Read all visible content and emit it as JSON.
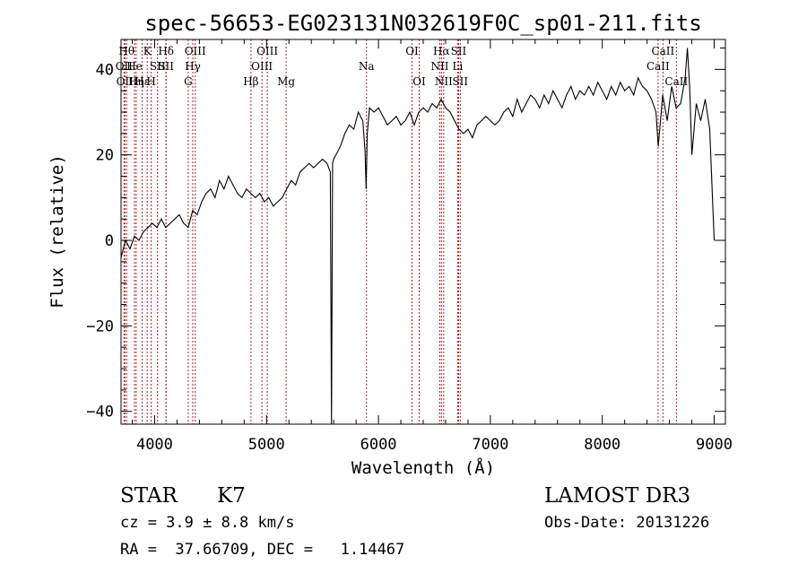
{
  "chart_data": {
    "type": "line",
    "title": "spec-56653-EG023131N032619F0C_sp01-211.fits",
    "xlabel": "Wavelength (Å)",
    "ylabel": "Flux (relative)",
    "xlim": [
      3700,
      9100
    ],
    "ylim": [
      -43,
      47
    ],
    "xticks": [
      4000,
      5000,
      6000,
      7000,
      8000,
      9000
    ],
    "yticks": [
      -40,
      -20,
      0,
      20,
      40
    ],
    "ytick_labels": [
      "−40",
      "−20",
      "0",
      "20",
      "40"
    ],
    "line_color": "#000000",
    "marker_color": "#b22222",
    "series": [
      {
        "x": [
          3700,
          3740,
          3780,
          3820,
          3860,
          3900,
          3940,
          3980,
          4020,
          4060,
          4100,
          4140,
          4180,
          4220,
          4260,
          4300,
          4340,
          4380,
          4420,
          4460,
          4500,
          4540,
          4580,
          4620,
          4660,
          4700,
          4740,
          4780,
          4820,
          4860,
          4900,
          4940,
          4980,
          5020,
          5060,
          5100,
          5140,
          5180,
          5220,
          5260,
          5300,
          5340,
          5380,
          5420,
          5460,
          5500,
          5540,
          5570,
          5580,
          5590,
          5600,
          5620,
          5660,
          5700,
          5740,
          5780,
          5820,
          5860,
          5880,
          5890,
          5900,
          5920,
          5960,
          6000,
          6040,
          6080,
          6120,
          6160,
          6200,
          6240,
          6280,
          6320,
          6360,
          6400,
          6440,
          6480,
          6520,
          6560,
          6600,
          6640,
          6680,
          6720,
          6760,
          6800,
          6840,
          6880,
          6920,
          6960,
          7000,
          7040,
          7080,
          7120,
          7160,
          7200,
          7240,
          7280,
          7320,
          7360,
          7400,
          7440,
          7480,
          7520,
          7560,
          7600,
          7640,
          7680,
          7720,
          7760,
          7800,
          7840,
          7880,
          7920,
          7960,
          8000,
          8040,
          8080,
          8120,
          8160,
          8200,
          8240,
          8280,
          8320,
          8360,
          8400,
          8440,
          8480,
          8500,
          8540,
          8580,
          8620,
          8660,
          8700,
          8740,
          8760,
          8780,
          8800,
          8840,
          8880,
          8920,
          8960,
          9000
        ],
        "y": [
          -4,
          0,
          -2,
          1,
          0,
          2,
          3,
          4,
          3,
          5,
          3,
          4,
          5,
          6,
          4,
          3,
          7,
          6,
          9,
          11,
          12,
          10,
          14,
          12,
          15,
          13,
          11,
          10,
          12,
          11,
          10,
          11,
          9,
          10,
          8,
          9,
          10,
          12,
          14,
          13,
          16,
          17,
          18,
          17,
          18,
          19,
          18,
          16,
          -43,
          18,
          19,
          20,
          22,
          25,
          27,
          26,
          30,
          28,
          21,
          12,
          25,
          31,
          30,
          31,
          29,
          27,
          28,
          29,
          27,
          28,
          30,
          27,
          30,
          31,
          30,
          32,
          31,
          33,
          31,
          30,
          28,
          26,
          25,
          26,
          24,
          27,
          28,
          29,
          28,
          27,
          28,
          30,
          31,
          29,
          33,
          30,
          32,
          34,
          33,
          31,
          34,
          32,
          35,
          33,
          31,
          34,
          36,
          33,
          35,
          34,
          36,
          34,
          37,
          35,
          33,
          36,
          34,
          37,
          35,
          36,
          34,
          38,
          36,
          35,
          33,
          30,
          22,
          34,
          28,
          36,
          31,
          32,
          38,
          45,
          36,
          20,
          32,
          28,
          33,
          26,
          0
        ]
      }
    ],
    "line_markers": [
      {
        "wl": 3750,
        "label": "Hθ",
        "row": 0
      },
      {
        "wl": 3727,
        "label": "OII",
        "row": 1
      },
      {
        "wl": 3734,
        "label": "OII",
        "row": 2
      },
      {
        "wl": 3820,
        "label": "He",
        "row": 1
      },
      {
        "wl": 3835,
        "label": "Hη",
        "row": 2
      },
      {
        "wl": 3889,
        "label": "Hε",
        "row": 2
      },
      {
        "wl": 3934,
        "label": "K",
        "row": 0
      },
      {
        "wl": 3969,
        "label": "H",
        "row": 2
      },
      {
        "wl": 4026,
        "label": "SII",
        "row": 1
      },
      {
        "wl": 4102,
        "label": "Hδ",
        "row": 0
      },
      {
        "wl": 4102,
        "label": "SII",
        "row": 1
      },
      {
        "wl": 4300,
        "label": "G",
        "row": 2
      },
      {
        "wl": 4341,
        "label": "Hγ",
        "row": 1
      },
      {
        "wl": 4363,
        "label": "OIII",
        "row": 0
      },
      {
        "wl": 4861,
        "label": "Hβ",
        "row": 2
      },
      {
        "wl": 4959,
        "label": "OIII",
        "row": 1
      },
      {
        "wl": 5007,
        "label": "OIII",
        "row": 0
      },
      {
        "wl": 5175,
        "label": "Mg",
        "row": 2
      },
      {
        "wl": 5893,
        "label": "Na",
        "row": 1
      },
      {
        "wl": 6300,
        "label": "OI",
        "row": 0
      },
      {
        "wl": 6364,
        "label": "OI",
        "row": 2
      },
      {
        "wl": 6548,
        "label": "NII",
        "row": 1
      },
      {
        "wl": 6563,
        "label": "Hα",
        "row": 0
      },
      {
        "wl": 6583,
        "label": "NII",
        "row": 2
      },
      {
        "wl": 6708,
        "label": "Li",
        "row": 1
      },
      {
        "wl": 6716,
        "label": "SII",
        "row": 0
      },
      {
        "wl": 6731,
        "label": "SII",
        "row": 2
      },
      {
        "wl": 8498,
        "label": "CaII",
        "row": 1
      },
      {
        "wl": 8542,
        "label": "CaII",
        "row": 0
      },
      {
        "wl": 8662,
        "label": "CaII",
        "row": 2
      }
    ]
  },
  "info": {
    "object_class": "STAR",
    "subclass": "K7",
    "redshift_text": "cz = 3.9 ± 8.8 km/s",
    "coords_text": "RA =  37.66709, DEC =   1.14467",
    "survey": "LAMOST DR3",
    "obs_date": "Obs-Date: 20131226"
  }
}
